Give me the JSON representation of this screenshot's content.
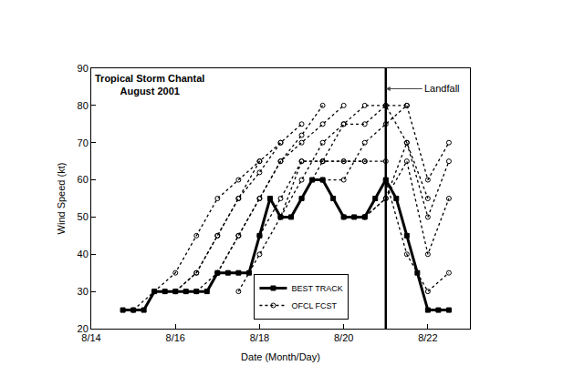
{
  "chart_data": {
    "type": "line",
    "title": "Tropical Storm Chantal",
    "subtitle": "August 2001",
    "x_label": "Date (Month/Day)",
    "y_label": "Wind Speed (kt)",
    "xlim": [
      14,
      23
    ],
    "xticks": [
      {
        "value": 14,
        "label": "8/14"
      },
      {
        "value": 16,
        "label": "8/16"
      },
      {
        "value": 18,
        "label": "8/18"
      },
      {
        "value": 20,
        "label": "8/20"
      },
      {
        "value": 22,
        "label": "8/22"
      }
    ],
    "ylim": [
      20,
      90
    ],
    "yticks": [
      20,
      30,
      40,
      50,
      60,
      70,
      80,
      90
    ],
    "grid": false,
    "legend": "bottom",
    "annotations": [
      {
        "text": "Landfall",
        "x": 21.0,
        "y": 84.5
      }
    ],
    "series": [
      {
        "name": "BEST TRACK",
        "color": "#000000",
        "marker": "square",
        "line_style": "solid",
        "x": [
          14.75,
          15.0,
          15.25,
          15.5,
          15.75,
          16.0,
          16.25,
          16.5,
          16.75,
          17.0,
          17.25,
          17.5,
          17.75,
          18.0,
          18.25,
          18.5,
          18.75,
          19.0,
          19.25,
          19.5,
          19.75,
          20.0,
          20.25,
          20.5,
          20.75,
          21.0,
          21.25,
          21.5,
          21.75,
          22.0,
          22.25,
          22.5
        ],
        "values": [
          25,
          25,
          25,
          30,
          30,
          30,
          30,
          30,
          30,
          35,
          35,
          35,
          35,
          45,
          55,
          50,
          50,
          55,
          60,
          60,
          55,
          50,
          50,
          50,
          55,
          60,
          55,
          45,
          35,
          25,
          25,
          25
        ]
      },
      {
        "name": "OFCL FCST",
        "color": "#000000",
        "marker": "circle-open",
        "line_style": "dot",
        "x": [
          15.0,
          15.5,
          16.0,
          16.5,
          17.0,
          17.5,
          18.0,
          null,
          15.5,
          16.0,
          16.5,
          17.0,
          17.5,
          18.0,
          18.5,
          null,
          16.0,
          16.5,
          17.0,
          17.5,
          18.0,
          18.5,
          19.0,
          null,
          16.5,
          17.0,
          17.5,
          18.0,
          18.5,
          19.0,
          19.5,
          null,
          17.0,
          17.5,
          18.0,
          18.5,
          19.0,
          19.5,
          20.0,
          null,
          17.5,
          18.0,
          18.5,
          19.0,
          19.5,
          20.0,
          20.5,
          null,
          18.0,
          18.5,
          19.0,
          19.5,
          20.0,
          20.5,
          21.0,
          null,
          18.5,
          19.0,
          19.5,
          20.0,
          20.5,
          21.0,
          21.5,
          null,
          19.0,
          19.5,
          20.0,
          20.5,
          21.0,
          21.5,
          22.0,
          null,
          19.5,
          20.0,
          20.5,
          21.0,
          21.5,
          22.0,
          22.5,
          null,
          20.0,
          20.5,
          21.0,
          21.5,
          22.0,
          22.5,
          null,
          20.5,
          21.0,
          21.5,
          22.0,
          22.5,
          null,
          21.0,
          21.5,
          22.0,
          22.5
        ],
        "values": [
          25,
          30,
          35,
          45,
          55,
          60,
          65,
          null,
          30,
          30,
          35,
          45,
          55,
          65,
          70,
          null,
          30,
          35,
          45,
          55,
          62,
          70,
          75,
          null,
          30,
          35,
          45,
          55,
          65,
          72,
          80,
          null,
          35,
          45,
          55,
          65,
          70,
          75,
          80,
          null,
          30,
          40,
          50,
          65,
          65,
          65,
          65,
          null,
          45,
          55,
          65,
          65,
          65,
          65,
          65,
          null,
          50,
          60,
          70,
          75,
          75,
          80,
          80,
          null,
          55,
          65,
          75,
          80,
          80,
          70,
          55,
          null,
          60,
          60,
          70,
          75,
          80,
          60,
          70,
          null,
          50,
          50,
          55,
          70,
          50,
          65,
          null,
          50,
          55,
          65,
          40,
          55,
          null,
          60,
          40,
          30,
          35
        ]
      }
    ]
  }
}
